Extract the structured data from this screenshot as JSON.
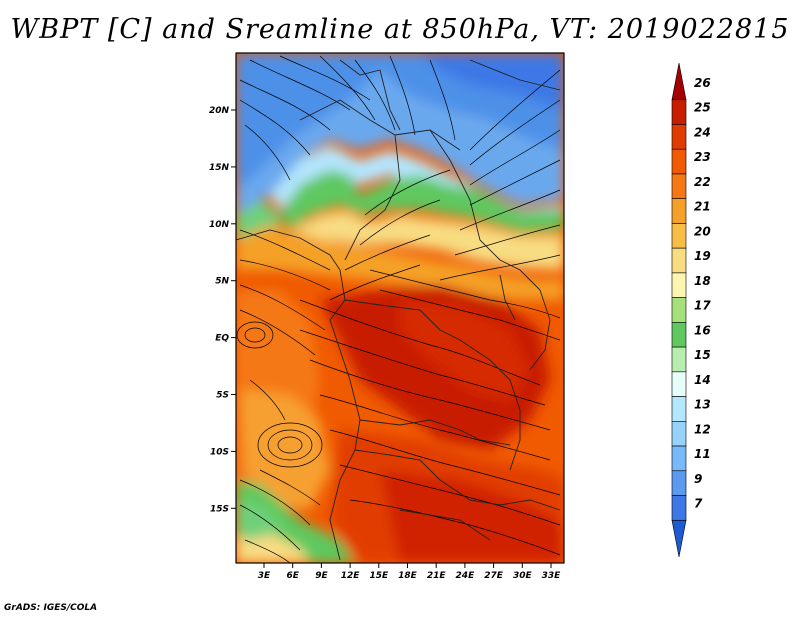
{
  "title": "WBPT [C] and Sreamline at 850hPa, VT: 2019022815",
  "footer": "GrADS: IGES/COLA",
  "map": {
    "lon_range": [
      0,
      34
    ],
    "lat_range": [
      -20,
      25
    ],
    "lon_ticks": [
      "3E",
      "6E",
      "9E",
      "12E",
      "15E",
      "18E",
      "21E",
      "24E",
      "27E",
      "30E",
      "33E"
    ],
    "lat_ticks": [
      "20N",
      "15N",
      "10N",
      "5N",
      "EQ",
      "5S",
      "10S",
      "15S"
    ]
  },
  "colorbar": {
    "labels": [
      "26",
      "25",
      "24",
      "23",
      "22",
      "21",
      "20",
      "19",
      "18",
      "17",
      "16",
      "15",
      "14",
      "13",
      "12",
      "11",
      "9",
      "7"
    ],
    "colors": [
      "#a50000",
      "#c81e00",
      "#e13c00",
      "#f05a00",
      "#f57814",
      "#f5a028",
      "#f7be46",
      "#f8dc82",
      "#fef5b0",
      "#a6e07a",
      "#5fc85f",
      "#b8edb0",
      "#e6fff8",
      "#b4e6ff",
      "#96d2fa",
      "#78b9fa",
      "#5a9bf0",
      "#3c78e6",
      "#1e5ad2"
    ]
  }
}
